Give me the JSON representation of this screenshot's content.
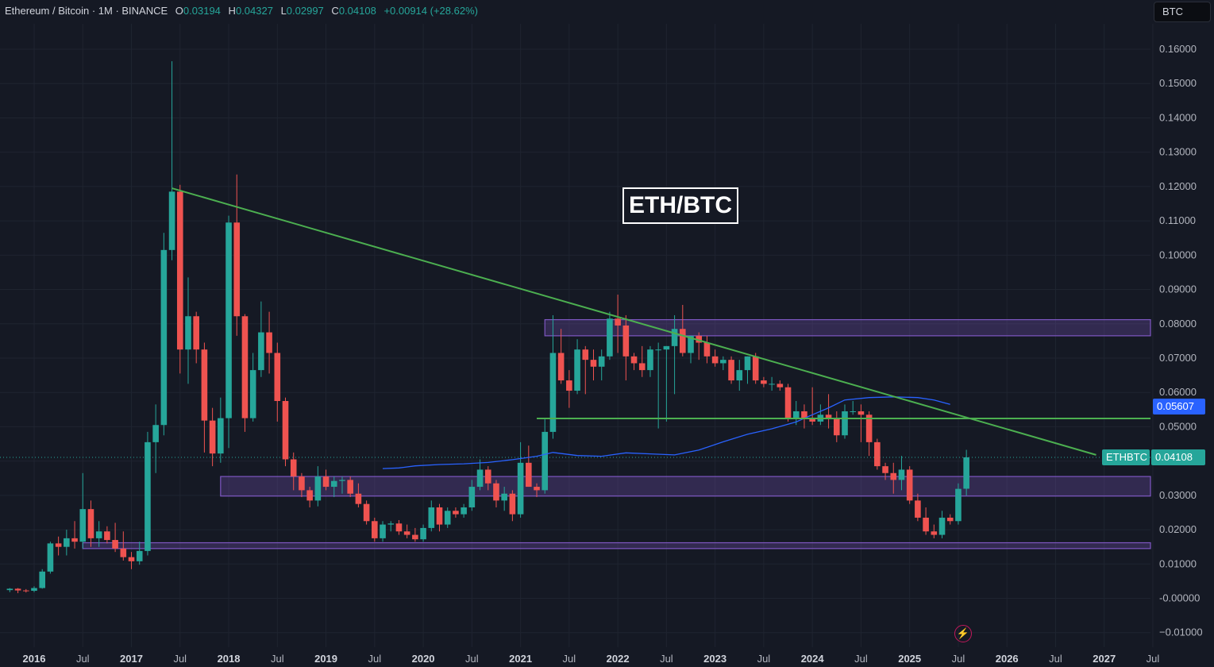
{
  "header": {
    "symbol": "Ethereum / Bitcoin · 1M · BINANCE",
    "open_label": "O",
    "open": "0.03194",
    "high_label": "H",
    "high": "0.04327",
    "low_label": "L",
    "low": "0.02997",
    "close_label": "C",
    "close": "0.04108",
    "change": "+0.00914 (+28.62%)"
  },
  "currency_button": "BTC",
  "title_box": "ETH/BTC",
  "price_tags": {
    "ma_value": "0.05607",
    "symbol_label": "ETHBTC",
    "last_price": "0.04108"
  },
  "colors": {
    "background": "#151924",
    "up": "#26a69a",
    "down": "#ef5350",
    "trendline": "#4caf50",
    "zone": "#7e57c2",
    "ma": "#2962ff"
  },
  "icons": {
    "bolt": "lightning-icon"
  },
  "chart_data": {
    "type": "candlestick",
    "interval": "1M",
    "x_axis_labels": [
      "2016",
      "Jul",
      "2017",
      "Jul",
      "2018",
      "Jul",
      "2019",
      "Jul",
      "2020",
      "Jul",
      "2021",
      "Jul",
      "2022",
      "Jul",
      "2023",
      "Jul",
      "2024",
      "Jul",
      "2025",
      "Jul",
      "2026",
      "Jul",
      "2027",
      "Jul"
    ],
    "y_axis_labels": [
      "0.16000",
      "0.15000",
      "0.14000",
      "0.13000",
      "0.12000",
      "0.11000",
      "0.10000",
      "0.09000",
      "0.08000",
      "0.07000",
      "0.06000",
      "0.05000",
      "0.04000",
      "0.03000",
      "0.02000",
      "0.01000",
      "-0.00000",
      "−0.01000"
    ],
    "ylim": [
      -0.0115,
      0.1675
    ],
    "xlim": [
      "2015-10",
      "2027-07"
    ],
    "grid": true,
    "candles": [
      [
        "2015-10",
        0.0024,
        0.003,
        0.0018,
        0.0028
      ],
      [
        "2015-11",
        0.0028,
        0.003,
        0.0015,
        0.0023
      ],
      [
        "2015-12",
        0.0023,
        0.0027,
        0.0017,
        0.0022
      ],
      [
        "2016-01",
        0.0022,
        0.0035,
        0.0018,
        0.003
      ],
      [
        "2016-02",
        0.003,
        0.0085,
        0.0028,
        0.0078
      ],
      [
        "2016-03",
        0.0078,
        0.0165,
        0.0072,
        0.016
      ],
      [
        "2016-04",
        0.016,
        0.018,
        0.0125,
        0.015
      ],
      [
        "2016-05",
        0.015,
        0.02,
        0.0125,
        0.0175
      ],
      [
        "2016-06",
        0.0175,
        0.0225,
        0.0145,
        0.0165
      ],
      [
        "2016-07",
        0.0165,
        0.0365,
        0.0145,
        0.026
      ],
      [
        "2016-08",
        0.026,
        0.0285,
        0.015,
        0.0175
      ],
      [
        "2016-09",
        0.0175,
        0.0225,
        0.015,
        0.0195
      ],
      [
        "2016-10",
        0.0195,
        0.021,
        0.016,
        0.017
      ],
      [
        "2016-11",
        0.017,
        0.022,
        0.0135,
        0.0145
      ],
      [
        "2016-12",
        0.0145,
        0.0195,
        0.011,
        0.012
      ],
      [
        "2017-01",
        0.012,
        0.0135,
        0.0085,
        0.0108
      ],
      [
        "2017-02",
        0.0108,
        0.0165,
        0.0098,
        0.0138
      ],
      [
        "2017-03",
        0.0138,
        0.0485,
        0.0125,
        0.0455
      ],
      [
        "2017-04",
        0.0455,
        0.0565,
        0.0365,
        0.0505
      ],
      [
        "2017-05",
        0.0505,
        0.1065,
        0.0475,
        0.1015
      ],
      [
        "2017-06",
        0.1015,
        0.1565,
        0.0985,
        0.1185
      ],
      [
        "2017-07",
        0.1185,
        0.1205,
        0.0655,
        0.0725
      ],
      [
        "2017-08",
        0.0725,
        0.0935,
        0.0625,
        0.0822
      ],
      [
        "2017-09",
        0.0822,
        0.0835,
        0.0685,
        0.0725
      ],
      [
        "2017-10",
        0.0725,
        0.0745,
        0.0425,
        0.0518
      ],
      [
        "2017-11",
        0.0518,
        0.0555,
        0.0385,
        0.0422
      ],
      [
        "2017-12",
        0.0422,
        0.0585,
        0.0395,
        0.0525
      ],
      [
        "2018-01",
        0.0525,
        0.1115,
        0.0438,
        0.1095
      ],
      [
        "2018-02",
        0.1095,
        0.1235,
        0.0765,
        0.0822
      ],
      [
        "2018-03",
        0.0822,
        0.0828,
        0.0485,
        0.0525
      ],
      [
        "2018-04",
        0.0525,
        0.0715,
        0.0515,
        0.0665
      ],
      [
        "2018-05",
        0.0665,
        0.0865,
        0.0645,
        0.0775
      ],
      [
        "2018-06",
        0.0775,
        0.0835,
        0.0655,
        0.0715
      ],
      [
        "2018-07",
        0.0715,
        0.0745,
        0.0515,
        0.0575
      ],
      [
        "2018-08",
        0.0575,
        0.0585,
        0.0385,
        0.0405
      ],
      [
        "2018-09",
        0.0405,
        0.0425,
        0.0315,
        0.0355
      ],
      [
        "2018-10",
        0.0355,
        0.0365,
        0.0295,
        0.0315
      ],
      [
        "2018-11",
        0.0315,
        0.0325,
        0.0265,
        0.0285
      ],
      [
        "2018-12",
        0.0285,
        0.0385,
        0.0268,
        0.0355
      ],
      [
        "2019-01",
        0.0355,
        0.0375,
        0.0315,
        0.0325
      ],
      [
        "2019-02",
        0.0325,
        0.0355,
        0.0295,
        0.0342
      ],
      [
        "2019-03",
        0.0342,
        0.0355,
        0.0305,
        0.0345
      ],
      [
        "2019-04",
        0.0345,
        0.0355,
        0.0295,
        0.0305
      ],
      [
        "2019-05",
        0.0305,
        0.0335,
        0.0265,
        0.0275
      ],
      [
        "2019-06",
        0.0275,
        0.0285,
        0.0215,
        0.0225
      ],
      [
        "2019-07",
        0.0225,
        0.0235,
        0.0165,
        0.0175
      ],
      [
        "2019-08",
        0.0175,
        0.0225,
        0.0165,
        0.0215
      ],
      [
        "2019-09",
        0.0215,
        0.0225,
        0.0195,
        0.0218
      ],
      [
        "2019-10",
        0.0218,
        0.0228,
        0.0185,
        0.0195
      ],
      [
        "2019-11",
        0.0195,
        0.0215,
        0.0175,
        0.0185
      ],
      [
        "2019-12",
        0.0185,
        0.0205,
        0.0165,
        0.0172
      ],
      [
        "2020-01",
        0.0172,
        0.0215,
        0.0165,
        0.0205
      ],
      [
        "2020-02",
        0.0205,
        0.0285,
        0.0195,
        0.0265
      ],
      [
        "2020-03",
        0.0265,
        0.0275,
        0.0195,
        0.0215
      ],
      [
        "2020-04",
        0.0215,
        0.0265,
        0.0205,
        0.0255
      ],
      [
        "2020-05",
        0.0255,
        0.0265,
        0.0235,
        0.0245
      ],
      [
        "2020-06",
        0.0245,
        0.0275,
        0.0235,
        0.0265
      ],
      [
        "2020-07",
        0.0265,
        0.0345,
        0.0255,
        0.0325
      ],
      [
        "2020-08",
        0.0325,
        0.0405,
        0.0315,
        0.0375
      ],
      [
        "2020-09",
        0.0375,
        0.0385,
        0.0315,
        0.0335
      ],
      [
        "2020-10",
        0.0335,
        0.0345,
        0.0265,
        0.0285
      ],
      [
        "2020-11",
        0.0285,
        0.0325,
        0.0255,
        0.0305
      ],
      [
        "2020-12",
        0.0305,
        0.0315,
        0.0225,
        0.0245
      ],
      [
        "2021-01",
        0.0245,
        0.0455,
        0.0235,
        0.0395
      ],
      [
        "2021-02",
        0.0395,
        0.0445,
        0.0325,
        0.0325
      ],
      [
        "2021-03",
        0.0325,
        0.0335,
        0.0295,
        0.0315
      ],
      [
        "2021-04",
        0.0315,
        0.0525,
        0.0305,
        0.0485
      ],
      [
        "2021-05",
        0.0485,
        0.0825,
        0.0465,
        0.0715
      ],
      [
        "2021-06",
        0.0715,
        0.0785,
        0.0625,
        0.0635
      ],
      [
        "2021-07",
        0.0635,
        0.0665,
        0.0555,
        0.0605
      ],
      [
        "2021-08",
        0.0605,
        0.0755,
        0.0595,
        0.0725
      ],
      [
        "2021-09",
        0.0725,
        0.0735,
        0.0595,
        0.0695
      ],
      [
        "2021-10",
        0.0695,
        0.0725,
        0.0635,
        0.0675
      ],
      [
        "2021-11",
        0.0675,
        0.0725,
        0.0635,
        0.0705
      ],
      [
        "2021-12",
        0.0705,
        0.0835,
        0.0695,
        0.0815
      ],
      [
        "2022-01",
        0.0815,
        0.0885,
        0.0715,
        0.0795
      ],
      [
        "2022-02",
        0.0795,
        0.0825,
        0.0635,
        0.0705
      ],
      [
        "2022-03",
        0.0705,
        0.0715,
        0.0665,
        0.0685
      ],
      [
        "2022-04",
        0.0685,
        0.0735,
        0.0645,
        0.0665
      ],
      [
        "2022-05",
        0.0665,
        0.0735,
        0.0645,
        0.0725
      ],
      [
        "2022-06",
        0.0725,
        0.0745,
        0.0495,
        0.0725
      ],
      [
        "2022-07",
        0.0725,
        0.0735,
        0.0515,
        0.0735
      ],
      [
        "2022-08",
        0.0735,
        0.0825,
        0.0595,
        0.0785
      ],
      [
        "2022-09",
        0.0785,
        0.0855,
        0.0705,
        0.0715
      ],
      [
        "2022-10",
        0.0715,
        0.0765,
        0.0685,
        0.0765
      ],
      [
        "2022-11",
        0.0765,
        0.0775,
        0.0695,
        0.0745
      ],
      [
        "2022-12",
        0.0745,
        0.0765,
        0.0685,
        0.0705
      ],
      [
        "2023-01",
        0.0705,
        0.0725,
        0.0675,
        0.0685
      ],
      [
        "2023-02",
        0.0685,
        0.0705,
        0.0665,
        0.0695
      ],
      [
        "2023-03",
        0.0695,
        0.0705,
        0.0625,
        0.0635
      ],
      [
        "2023-04",
        0.0635,
        0.0695,
        0.0605,
        0.0665
      ],
      [
        "2023-05",
        0.0665,
        0.0705,
        0.0625,
        0.0705
      ],
      [
        "2023-06",
        0.0705,
        0.0715,
        0.0625,
        0.0635
      ],
      [
        "2023-07",
        0.0635,
        0.0645,
        0.0615,
        0.0625
      ],
      [
        "2023-08",
        0.0625,
        0.0645,
        0.0605,
        0.0625
      ],
      [
        "2023-09",
        0.0625,
        0.0635,
        0.0605,
        0.0615
      ],
      [
        "2023-10",
        0.0615,
        0.0625,
        0.0515,
        0.0525
      ],
      [
        "2023-11",
        0.0525,
        0.0575,
        0.0505,
        0.0545
      ],
      [
        "2023-12",
        0.0545,
        0.0565,
        0.0495,
        0.0525
      ],
      [
        "2024-01",
        0.0525,
        0.0615,
        0.0505,
        0.0515
      ],
      [
        "2024-02",
        0.0515,
        0.0565,
        0.0505,
        0.0535
      ],
      [
        "2024-03",
        0.0535,
        0.0595,
        0.0495,
        0.0525
      ],
      [
        "2024-04",
        0.0525,
        0.0545,
        0.0455,
        0.0475
      ],
      [
        "2024-05",
        0.0475,
        0.0565,
        0.0465,
        0.0545
      ],
      [
        "2024-06",
        0.0545,
        0.0575,
        0.0535,
        0.0545
      ],
      [
        "2024-07",
        0.0545,
        0.0565,
        0.0455,
        0.0535
      ],
      [
        "2024-08",
        0.0535,
        0.0545,
        0.0415,
        0.0455
      ],
      [
        "2024-09",
        0.0455,
        0.0465,
        0.0375,
        0.0385
      ],
      [
        "2024-10",
        0.0385,
        0.0395,
        0.0345,
        0.0365
      ],
      [
        "2024-11",
        0.0365,
        0.0395,
        0.0305,
        0.0345
      ],
      [
        "2024-12",
        0.0345,
        0.0415,
        0.0315,
        0.0375
      ],
      [
        "2025-01",
        0.0375,
        0.0385,
        0.0275,
        0.0285
      ],
      [
        "2025-02",
        0.0285,
        0.0305,
        0.0225,
        0.0235
      ],
      [
        "2025-03",
        0.0235,
        0.0265,
        0.0185,
        0.0195
      ],
      [
        "2025-04",
        0.0195,
        0.0215,
        0.0175,
        0.0185
      ],
      [
        "2025-05",
        0.0185,
        0.0255,
        0.0175,
        0.0235
      ],
      [
        "2025-06",
        0.0235,
        0.0245,
        0.0215,
        0.0225
      ],
      [
        "2025-07",
        0.0225,
        0.0335,
        0.0215,
        0.0319
      ],
      [
        "2025-08",
        0.03194,
        0.04327,
        0.02997,
        0.04108
      ]
    ],
    "moving_average": [
      [
        "2019-08",
        0.0378
      ],
      [
        "2019-10",
        0.038
      ],
      [
        "2019-12",
        0.0386
      ],
      [
        "2020-03",
        0.039
      ],
      [
        "2020-06",
        0.0392
      ],
      [
        "2020-09",
        0.0396
      ],
      [
        "2020-12",
        0.0404
      ],
      [
        "2021-03",
        0.0414
      ],
      [
        "2021-05",
        0.0425
      ],
      [
        "2021-08",
        0.0416
      ],
      [
        "2021-11",
        0.0414
      ],
      [
        "2022-02",
        0.0424
      ],
      [
        "2022-05",
        0.0421
      ],
      [
        "2022-08",
        0.0418
      ],
      [
        "2022-11",
        0.0432
      ],
      [
        "2023-02",
        0.0456
      ],
      [
        "2023-05",
        0.0478
      ],
      [
        "2023-08",
        0.0494
      ],
      [
        "2023-11",
        0.0514
      ],
      [
        "2024-01",
        0.0535
      ],
      [
        "2024-03",
        0.0555
      ],
      [
        "2024-05",
        0.0578
      ],
      [
        "2024-08",
        0.0585
      ],
      [
        "2024-11",
        0.0587
      ],
      [
        "2025-02",
        0.0585
      ],
      [
        "2025-04",
        0.0578
      ],
      [
        "2025-06",
        0.0565
      ]
    ],
    "trendlines": [
      {
        "from": [
          "2017-06",
          0.1195
        ],
        "to": [
          "2026-12",
          0.0418
        ]
      },
      {
        "from": [
          "2021-03",
          0.0524
        ],
        "to": [
          "2027-09",
          0.0524
        ]
      }
    ],
    "zones": [
      {
        "from": "2021-04",
        "low": 0.0765,
        "high": 0.0812
      },
      {
        "from": "2017-12",
        "low": 0.0298,
        "high": 0.0355
      },
      {
        "from": "2016-07",
        "low": 0.0145,
        "high": 0.0162
      }
    ],
    "last_price_line": 0.04108
  }
}
